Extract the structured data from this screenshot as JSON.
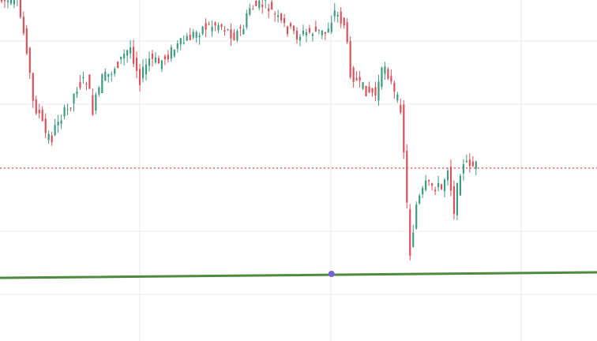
{
  "colors": {
    "background": "#ffffff",
    "grid": "#ebebeb",
    "up": "#3e9a81",
    "down": "#d9515b",
    "current_price_line": "#d9515b",
    "trend_line": "#4c8b3e",
    "anchor_point": "#7a60d6"
  },
  "chart_data": {
    "type": "candlestick",
    "title": "",
    "xlabel": "",
    "ylabel": "",
    "grid": true,
    "ylim": [
      0,
      432
    ],
    "x_range": [
      0,
      190
    ],
    "current_price": 213,
    "trend_line": {
      "x": [
        0,
        190
      ],
      "y": [
        352,
        345
      ]
    },
    "anchor_point": {
      "x": 105.5,
      "y": 347
    },
    "candles": []
  }
}
